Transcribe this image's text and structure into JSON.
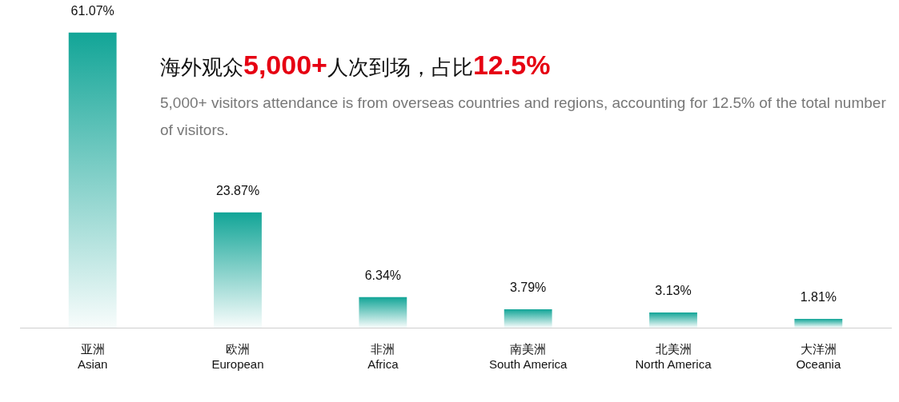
{
  "chart_data": {
    "type": "bar",
    "title": "海外观众5,000+人次到场，占比12.5%",
    "subtitle": "5,000+ visitors attendance is from overseas countries and regions, accounting for 12.5% of the total number of visitors.",
    "categories": [
      "亚洲\nAsian",
      "欧洲\nEuropean",
      "非洲\nAfrica",
      "南美洲\nSouth America",
      "北美洲\nNorth America",
      "大洋洲\nOceania"
    ],
    "values": [
      61.07,
      23.87,
      6.34,
      3.79,
      3.13,
      1.81
    ],
    "value_labels": [
      "61.07%",
      "23.87%",
      "6.34%",
      "3.79%",
      "3.13%",
      "1.81%"
    ],
    "color": "#12a597",
    "grid": false,
    "legend": false
  }
}
